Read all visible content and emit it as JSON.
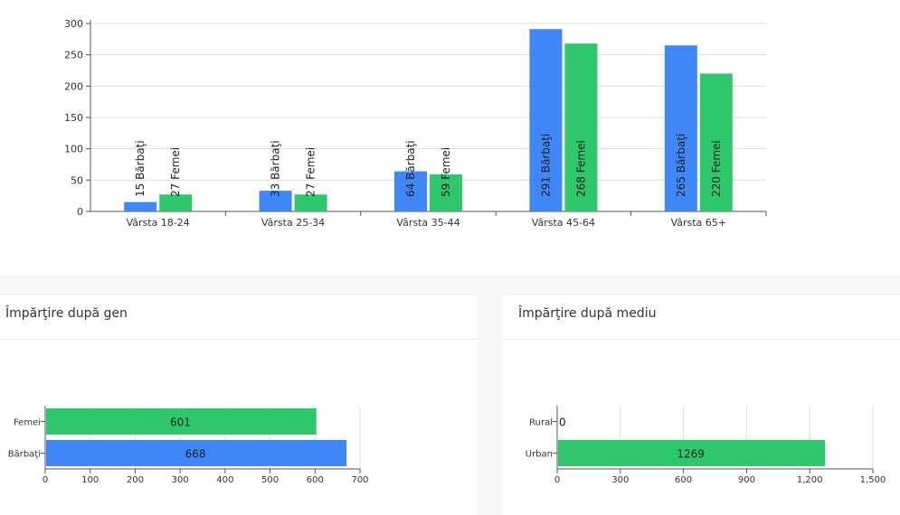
{
  "colors": {
    "male": "#3f86f7",
    "female": "#2ec76b",
    "axis": "#555555",
    "grid": "#dddddd"
  },
  "age_chart": {
    "chart_data": {
      "type": "bar",
      "categories": [
        "Vârsta 18-24",
        "Vârsta 25-34",
        "Vârsta 35-44",
        "Vârsta 45-64",
        "Vârsta 65+"
      ],
      "series": [
        {
          "values": [
            15,
            33,
            64,
            291,
            265
          ],
          "labels": [
            "15 Bărbaţi",
            "33 Bărbaţi",
            "64 Bărbaţi",
            "291 Bărbaţi",
            "265 Bărbaţi"
          ]
        },
        {
          "values": [
            27,
            27,
            59,
            268,
            220
          ],
          "labels": [
            "27 Femei",
            "27 Femei",
            "59 Femei",
            "268 Femei",
            "220 Femei"
          ]
        }
      ],
      "yticks": [
        "0",
        "50",
        "100",
        "150",
        "200",
        "250",
        "300"
      ],
      "ylim": [
        0,
        300
      ],
      "grid": true
    }
  },
  "gender_card": {
    "title": "Împărţire după gen",
    "chart_data": {
      "type": "bar",
      "orientation": "horizontal",
      "categories": [
        "Femei",
        "Bărbaţi"
      ],
      "values": [
        601,
        668
      ],
      "value_labels": [
        "601",
        "668"
      ],
      "xticks": [
        "0",
        "100",
        "200",
        "300",
        "400",
        "500",
        "600",
        "700"
      ],
      "xlim": [
        0,
        700
      ],
      "grid": true
    }
  },
  "env_card": {
    "title": "Împărţire după mediu",
    "chart_data": {
      "type": "bar",
      "orientation": "horizontal",
      "categories": [
        "Rural",
        "Urban"
      ],
      "values": [
        0,
        1269
      ],
      "value_labels": [
        "0",
        "1269"
      ],
      "xticks": [
        "0",
        "300",
        "600",
        "900",
        "1,200",
        "1,500"
      ],
      "xlim": [
        0,
        1500
      ],
      "grid": true
    }
  }
}
